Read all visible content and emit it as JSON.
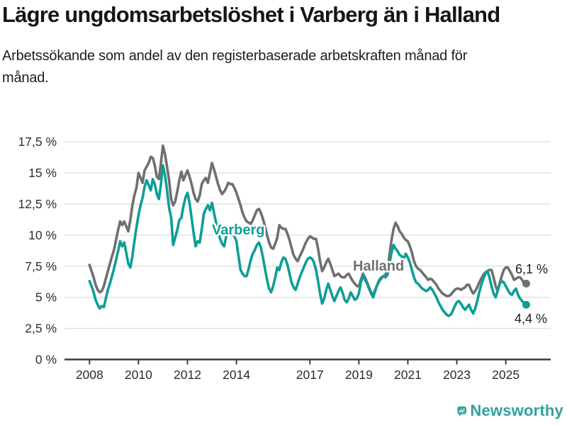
{
  "header": {
    "title": "Lägre ungdomsarbetslöshet i Varberg än i Halland",
    "subtitle": "Arbetssökande som andel av den registerbaserade arbetskraften månad för månad."
  },
  "footer": {
    "brand": "Newsworthy",
    "brand_color": "#2fa2a0"
  },
  "chart_data": {
    "type": "line",
    "title": "",
    "xlabel": "",
    "ylabel": "",
    "unit": "%",
    "decimal_separator": ",",
    "grid": "horizontal",
    "legend_position": "inline-labels",
    "x_start": "2008-01",
    "x_end": "2025-11",
    "x_frequency": "monthly",
    "ylim": [
      0,
      17.5
    ],
    "yticks": [
      {
        "v": 0,
        "label": "0 %"
      },
      {
        "v": 2.5,
        "label": "2,5 %"
      },
      {
        "v": 5,
        "label": "5 %"
      },
      {
        "v": 7.5,
        "label": "7,5 %"
      },
      {
        "v": 10,
        "label": "10 %"
      },
      {
        "v": 12.5,
        "label": "12,5 %"
      },
      {
        "v": 15,
        "label": "15 %"
      },
      {
        "v": 17.5,
        "label": "17,5 %"
      }
    ],
    "xticks": [
      {
        "year": 2008,
        "label": "2008"
      },
      {
        "year": 2010,
        "label": "2010"
      },
      {
        "year": 2012,
        "label": "2012"
      },
      {
        "year": 2014,
        "label": "2014"
      },
      {
        "year": 2017,
        "label": "2017"
      },
      {
        "year": 2019,
        "label": "2019"
      },
      {
        "year": 2021,
        "label": "2021"
      },
      {
        "year": 2023,
        "label": "2023"
      },
      {
        "year": 2025,
        "label": "2025"
      }
    ],
    "series": [
      {
        "name": "Halland",
        "color": "#6f6f6f",
        "end_label": "6,1 %",
        "values": [
          7.6,
          7.1,
          6.6,
          6.0,
          5.6,
          5.4,
          5.5,
          5.9,
          6.5,
          7.1,
          7.7,
          8.3,
          8.8,
          9.6,
          10.4,
          11.1,
          10.8,
          11.1,
          10.7,
          10.3,
          11.2,
          12.4,
          13.2,
          13.8,
          15.0,
          14.6,
          14.2,
          15.2,
          15.5,
          15.8,
          16.3,
          16.2,
          15.6,
          14.7,
          14.5,
          15.8,
          17.2,
          16.5,
          15.5,
          14.4,
          12.9,
          12.4,
          12.7,
          13.5,
          14.4,
          15.1,
          14.4,
          14.8,
          15.2,
          14.7,
          14.1,
          13.4,
          12.9,
          12.7,
          13.2,
          14.1,
          14.4,
          14.6,
          14.2,
          15.0,
          15.8,
          15.3,
          14.7,
          14.1,
          13.6,
          13.3,
          13.5,
          13.8,
          14.2,
          14.1,
          14.1,
          13.8,
          13.4,
          12.9,
          12.4,
          11.8,
          11.4,
          11.1,
          11.0,
          10.9,
          11.2,
          11.6,
          12.0,
          12.1,
          11.8,
          11.3,
          10.7,
          10.0,
          9.4,
          9.0,
          8.9,
          9.3,
          9.8,
          10.8,
          10.6,
          10.5,
          10.5,
          10.1,
          9.6,
          9.0,
          8.4,
          8.1,
          7.9,
          8.3,
          8.6,
          9.0,
          9.4,
          9.7,
          9.9,
          9.8,
          9.7,
          9.7,
          8.9,
          7.9,
          7.1,
          7.4,
          7.8,
          8.1,
          7.7,
          7.2,
          6.7,
          6.8,
          6.9,
          6.7,
          6.6,
          6.6,
          6.8,
          6.9,
          6.6,
          6.3,
          6.1,
          5.9,
          5.9,
          6.4,
          6.9,
          6.6,
          6.2,
          5.8,
          5.4,
          5.2,
          5.6,
          6.0,
          6.3,
          6.5,
          6.7,
          6.8,
          7.2,
          8.4,
          9.6,
          10.5,
          11.0,
          10.7,
          10.3,
          10.1,
          9.8,
          9.6,
          9.5,
          9.1,
          8.6,
          7.9,
          7.5,
          7.3,
          7.2,
          7.0,
          6.8,
          6.6,
          6.4,
          6.5,
          6.4,
          6.2,
          6.0,
          5.7,
          5.5,
          5.3,
          5.2,
          5.1,
          5.1,
          5.2,
          5.4,
          5.6,
          5.7,
          5.7,
          5.6,
          5.7,
          5.8,
          6.0,
          6.0,
          5.6,
          5.3,
          5.5,
          5.8,
          6.2,
          6.5,
          6.8,
          7.0,
          7.1,
          7.2,
          7.2,
          6.6,
          5.9,
          5.5,
          6.1,
          6.7,
          7.2,
          7.4,
          7.4,
          7.1,
          6.8,
          6.4,
          6.5,
          6.6,
          6.6,
          6.4,
          6.1,
          6.1
        ]
      },
      {
        "name": "Varberg",
        "color": "#0d9e96",
        "end_label": "4,4 %",
        "values": [
          6.3,
          5.9,
          5.4,
          4.8,
          4.4,
          4.1,
          4.3,
          4.2,
          4.9,
          5.6,
          6.1,
          6.7,
          7.3,
          8.0,
          8.7,
          9.5,
          9.1,
          9.4,
          8.6,
          7.7,
          7.4,
          8.3,
          9.5,
          10.6,
          11.6,
          12.4,
          13.0,
          13.9,
          14.4,
          14.0,
          13.6,
          14.5,
          14.1,
          13.3,
          12.9,
          14.1,
          15.6,
          14.8,
          13.6,
          12.2,
          11.4,
          9.2,
          9.8,
          10.4,
          11.2,
          11.4,
          12.3,
          13.0,
          13.4,
          12.6,
          11.4,
          10.2,
          9.1,
          9.5,
          9.4,
          10.5,
          11.7,
          12.1,
          12.4,
          12.0,
          12.6,
          11.8,
          11.0,
          10.2,
          9.7,
          9.3,
          9.1,
          9.9,
          10.7,
          10.4,
          10.2,
          9.9,
          9.5,
          8.3,
          7.2,
          6.9,
          6.7,
          6.7,
          7.3,
          8.0,
          8.5,
          8.8,
          9.2,
          9.4,
          9.0,
          8.2,
          7.3,
          6.4,
          5.7,
          5.4,
          5.9,
          6.6,
          7.4,
          7.2,
          7.8,
          8.2,
          8.1,
          7.6,
          6.9,
          6.2,
          5.8,
          5.6,
          6.1,
          6.6,
          7.0,
          7.4,
          7.8,
          8.1,
          8.2,
          8.1,
          7.8,
          7.2,
          6.3,
          5.3,
          4.5,
          4.9,
          5.6,
          6.1,
          5.6,
          5.1,
          4.7,
          5.1,
          5.5,
          5.8,
          5.4,
          4.8,
          4.6,
          4.9,
          5.4,
          5.1,
          4.8,
          4.9,
          5.3,
          6.2,
          6.8,
          6.4,
          6.1,
          5.7,
          5.3,
          5.0,
          5.5,
          6.0,
          6.4,
          6.6,
          6.7,
          6.6,
          6.8,
          7.7,
          8.6,
          9.2,
          8.9,
          8.7,
          8.4,
          8.3,
          8.1,
          8.5,
          8.2,
          7.8,
          7.2,
          6.6,
          6.2,
          6.1,
          5.9,
          5.7,
          5.6,
          5.5,
          5.6,
          5.8,
          5.6,
          5.3,
          5.0,
          4.6,
          4.3,
          4.0,
          3.8,
          3.6,
          3.5,
          3.6,
          3.9,
          4.3,
          4.6,
          4.7,
          4.5,
          4.2,
          4.0,
          4.2,
          4.4,
          4.0,
          3.7,
          4.1,
          4.7,
          5.4,
          6.0,
          6.5,
          6.9,
          7.1,
          6.6,
          5.9,
          5.3,
          5.0,
          5.5,
          6.1,
          6.3,
          6.2,
          5.9,
          5.6,
          5.3,
          5.2,
          5.5,
          5.7,
          5.2,
          4.9,
          4.7,
          4.5,
          4.4
        ]
      }
    ]
  }
}
